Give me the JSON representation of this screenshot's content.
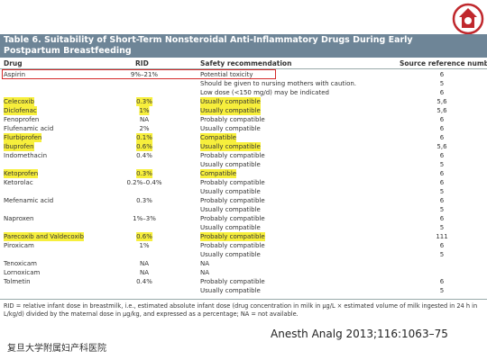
{
  "table": {
    "title": "Table 6.  Suitability of Short-Term Nonsteroidal Anti-Inflammatory Drugs During Early Postpartum Breastfeeding",
    "headers": {
      "drug": "Drug",
      "rid": "RID",
      "safety": "Safety recommendation",
      "ref": "Source reference number"
    },
    "rows": [
      {
        "drug": "Aspirin",
        "rid": "9%–21%",
        "safety": "Potential toxicity",
        "ref": "6",
        "boxed": true
      },
      {
        "safety": "Should be given to nursing mothers with caution.",
        "ref": "5"
      },
      {
        "safety": "Low dose (<150 mg/d) may be indicated",
        "ref": "6"
      },
      {
        "drug": "Celecoxib",
        "rid": "0.3%",
        "safety": "Usually compatible",
        "ref": "5,6",
        "highlighted": true
      },
      {
        "drug": "Diclofenac",
        "rid": "1%",
        "safety": "Usually compatible",
        "ref": "5,6",
        "highlighted": true
      },
      {
        "drug": "Fenoprofen",
        "rid": "NA",
        "safety": "Probably compatible",
        "ref": "6"
      },
      {
        "drug": "Flufenamic acid",
        "rid": "2%",
        "safety": "Usually compatible",
        "ref": "6"
      },
      {
        "drug": "Flurbiprofen",
        "rid": "0.1%",
        "safety": "Compatible",
        "ref": "6",
        "highlighted": true
      },
      {
        "drug": "Ibuprofen",
        "rid": "0.6%",
        "safety": "Usually compatible",
        "ref": "5,6",
        "highlighted": true
      },
      {
        "drug": "Indomethacin",
        "rid": "0.4%",
        "safety": "Probably compatible",
        "ref": "6"
      },
      {
        "safety": "Usually compatible",
        "ref": "5"
      },
      {
        "drug": "Ketoprofen",
        "rid": "0.3%",
        "safety": "Compatible",
        "ref": "6",
        "highlighted": true
      },
      {
        "drug": "Ketorolac",
        "rid": "0.2%–0.4%",
        "safety": "Probably compatible",
        "ref": "6"
      },
      {
        "safety": "Usually compatible",
        "ref": "5"
      },
      {
        "drug": "Mefenamic acid",
        "rid": "0.3%",
        "safety": "Probably compatible",
        "ref": "6"
      },
      {
        "safety": "Usually compatible",
        "ref": "5"
      },
      {
        "drug": "Naproxen",
        "rid": "1%–3%",
        "safety": "Probably compatible",
        "ref": "6"
      },
      {
        "safety": "Usually compatible",
        "ref": "5"
      },
      {
        "drug": "Parecoxib and Valdecoxib",
        "rid": "0.6%",
        "safety": "Probably compatible",
        "ref": "111",
        "highlighted": true
      },
      {
        "drug": "Piroxicam",
        "rid": "1%",
        "safety": "Probably compatible",
        "ref": "6"
      },
      {
        "safety": "Usually compatible",
        "ref": "5"
      },
      {
        "drug": "Tenoxicam",
        "rid": "NA",
        "safety": "NA"
      },
      {
        "drug": "Lornoxicam",
        "rid": "NA",
        "safety": "NA"
      },
      {
        "drug": "Tolmetin",
        "rid": "0.4%",
        "safety": "Probably compatible",
        "ref": "6"
      },
      {
        "safety": "Usually compatible",
        "ref": "5"
      }
    ],
    "footnote": "RID = relative infant dose in breastmilk, i.e., estimated absolute infant dose (drug concentration in milk in μg/L × estimated volume of milk ingested in 24 h in L/kg/d) divided by the maternal dose in μg/kg, and expressed as a percentage; NA = not available."
  },
  "citation": "Anesth Analg 2013;116:1063–75",
  "institution": "复旦大学附属妇产科医院"
}
